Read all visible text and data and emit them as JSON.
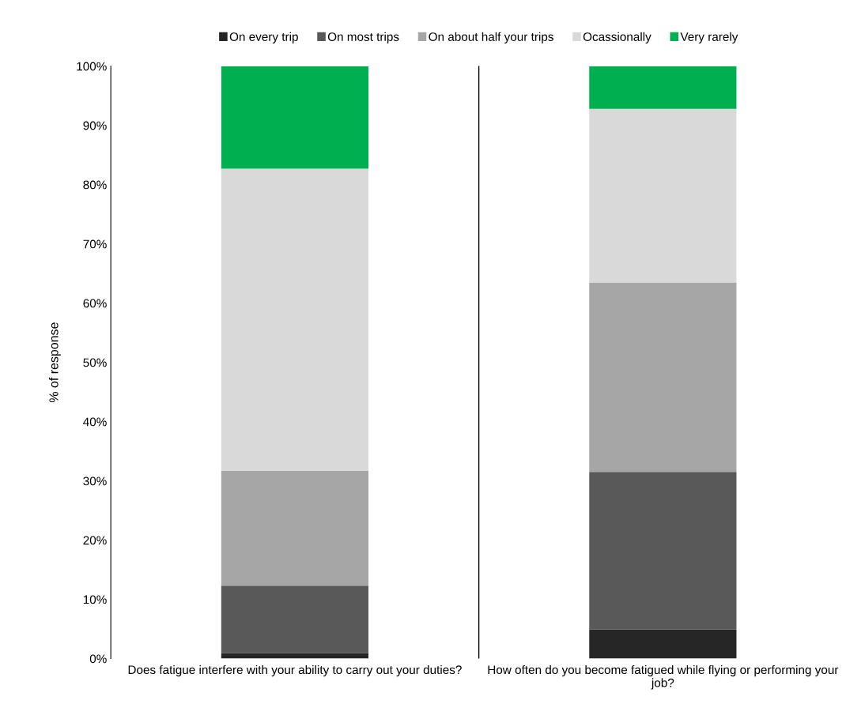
{
  "chart_data": {
    "type": "bar",
    "stacked": true,
    "ylabel": "% of response",
    "categories": [
      "Does fatigue interfere with your ability to carry out your duties?",
      "How often do you become fatigued while flying or performing your job?"
    ],
    "series": [
      {
        "name": "On every trip",
        "color": "#262626",
        "values": [
          0.9,
          4.9
        ]
      },
      {
        "name": "On most trips",
        "color": "#595959",
        "values": [
          11.4,
          26.6
        ]
      },
      {
        "name": "On about half your trips",
        "color": "#a6a6a6",
        "values": [
          19.4,
          32.0
        ]
      },
      {
        "name": "Ocassionally",
        "color": "#d9d9d9",
        "values": [
          51.0,
          29.3
        ]
      },
      {
        "name": "Very rarely",
        "color": "#00b050",
        "values": [
          17.3,
          7.2
        ]
      }
    ],
    "ylim": [
      0,
      100
    ],
    "yticks": [
      {
        "value": 0,
        "label": "0%"
      },
      {
        "value": 10,
        "label": "10%"
      },
      {
        "value": 20,
        "label": "20%"
      },
      {
        "value": 30,
        "label": "30%"
      },
      {
        "value": 40,
        "label": "40%"
      },
      {
        "value": 50,
        "label": "50%"
      },
      {
        "value": 60,
        "label": "60%"
      },
      {
        "value": 70,
        "label": "70%"
      },
      {
        "value": 80,
        "label": "80%"
      },
      {
        "value": 90,
        "label": "90%"
      },
      {
        "value": 100,
        "label": "100%"
      }
    ],
    "grid": false,
    "legend": "top"
  }
}
